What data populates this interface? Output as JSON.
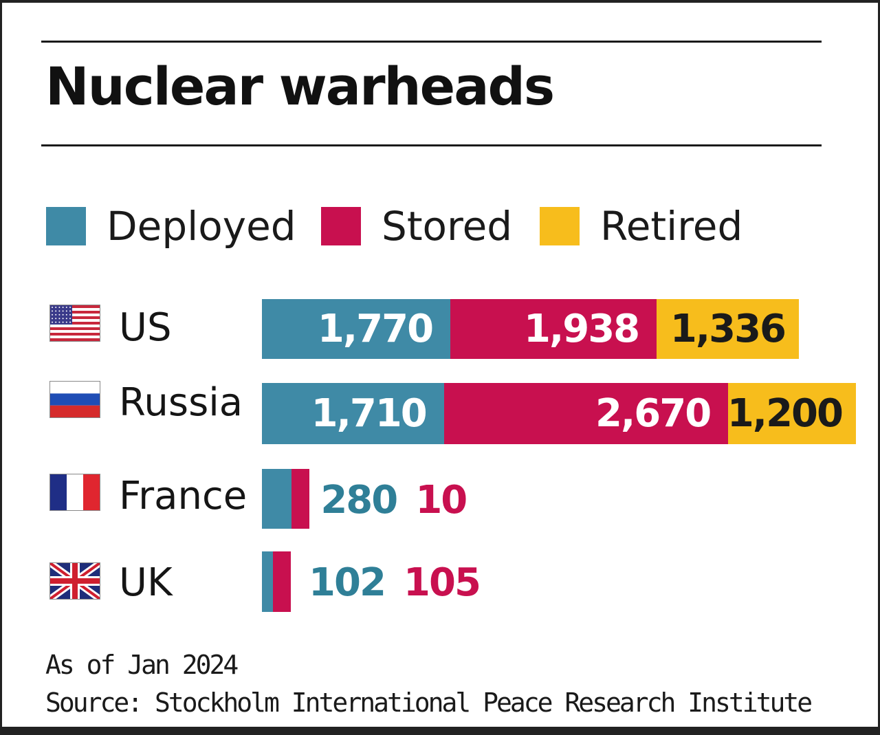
{
  "chart_data": {
    "type": "bar",
    "orientation": "horizontal",
    "stacked": true,
    "title": "Nuclear warheads",
    "categories": [
      "US",
      "Russia",
      "France",
      "UK"
    ],
    "series": [
      {
        "name": "Deployed",
        "color": "#3f8aa6",
        "values": [
          1770,
          1710,
          280,
          102
        ],
        "labels": [
          "1,770",
          "1,710",
          "280",
          "102"
        ]
      },
      {
        "name": "Stored",
        "color": "#c8104f",
        "values": [
          1938,
          2670,
          10,
          105
        ],
        "labels": [
          "1,938",
          "2,670",
          "10",
          "105"
        ]
      },
      {
        "name": "Retired",
        "color": "#f7bd1c",
        "values": [
          1336,
          1200,
          0,
          0
        ],
        "labels": [
          "1,336",
          "1,200",
          "",
          ""
        ]
      }
    ],
    "legend_position": "top",
    "xlabel": "",
    "ylabel": ""
  },
  "flags": [
    "us-flag",
    "russia-flag",
    "france-flag",
    "uk-flag"
  ],
  "footnotes": {
    "date": "As of Jan 2024",
    "source": "Source: Stockholm International Peace Research Institute"
  }
}
